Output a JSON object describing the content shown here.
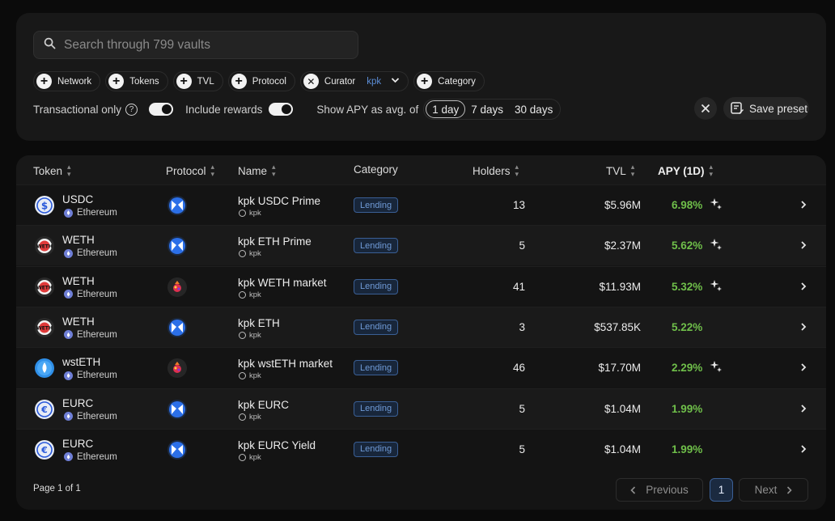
{
  "search": {
    "placeholder": "Search through 799 vaults"
  },
  "filters": {
    "network": "Network",
    "tokens": "Tokens",
    "tvl": "TVL",
    "protocol": "Protocol",
    "curator_label": "Curator",
    "curator_value": "kpk",
    "category": "Category"
  },
  "options": {
    "transactional_only": "Transactional only",
    "include_rewards": "Include rewards",
    "apy_avg_label": "Show APY as avg. of",
    "periods": [
      "1 day",
      "7 days",
      "30 days"
    ],
    "selected_period": "1 day",
    "save_preset": "Save preset"
  },
  "table": {
    "headers": {
      "token": "Token",
      "protocol": "Protocol",
      "name": "Name",
      "category": "Category",
      "holders": "Holders",
      "tvl": "TVL",
      "apy": "APY (1D)"
    },
    "rows": [
      {
        "token": "USDC",
        "network": "Ethereum",
        "token_icon": "usdc-icon",
        "protocol_icon": "morpho-icon",
        "name": "kpk USDC Prime",
        "curator": "kpk",
        "category": "Lending",
        "holders": "13",
        "tvl": "$5.96M",
        "apy": "6.98%",
        "rewards": true
      },
      {
        "token": "WETH",
        "network": "Ethereum",
        "token_icon": "weth-icon",
        "protocol_icon": "morpho-icon",
        "name": "kpk ETH Prime",
        "curator": "kpk",
        "category": "Lending",
        "holders": "5",
        "tvl": "$2.37M",
        "apy": "5.62%",
        "rewards": true
      },
      {
        "token": "WETH",
        "network": "Ethereum",
        "token_icon": "weth-icon",
        "protocol_icon": "euler-icon",
        "name": "kpk WETH market",
        "curator": "kpk",
        "category": "Lending",
        "holders": "41",
        "tvl": "$11.93M",
        "apy": "5.32%",
        "rewards": true
      },
      {
        "token": "WETH",
        "network": "Ethereum",
        "token_icon": "weth-icon",
        "protocol_icon": "morpho-icon",
        "name": "kpk ETH",
        "curator": "kpk",
        "category": "Lending",
        "holders": "3",
        "tvl": "$537.85K",
        "apy": "5.22%",
        "rewards": false
      },
      {
        "token": "wstETH",
        "network": "Ethereum",
        "token_icon": "wsteth-icon",
        "protocol_icon": "euler-icon",
        "name": "kpk wstETH market",
        "curator": "kpk",
        "category": "Lending",
        "holders": "46",
        "tvl": "$17.70M",
        "apy": "2.29%",
        "rewards": true
      },
      {
        "token": "EURC",
        "network": "Ethereum",
        "token_icon": "eurc-icon",
        "protocol_icon": "morpho-icon",
        "name": "kpk EURC",
        "curator": "kpk",
        "category": "Lending",
        "holders": "5",
        "tvl": "$1.04M",
        "apy": "1.99%",
        "rewards": false
      },
      {
        "token": "EURC",
        "network": "Ethereum",
        "token_icon": "eurc-icon",
        "protocol_icon": "morpho-icon",
        "name": "kpk EURC Yield",
        "curator": "kpk",
        "category": "Lending",
        "holders": "5",
        "tvl": "$1.04M",
        "apy": "1.99%",
        "rewards": false
      }
    ]
  },
  "pagination": {
    "info": "Page 1 of 1",
    "previous": "Previous",
    "current": "1",
    "next": "Next"
  },
  "colors": {
    "apy_green": "#6fbf4a",
    "badge_blue": "#6f9ad6",
    "morpho_blue": "#2b6fe8"
  }
}
